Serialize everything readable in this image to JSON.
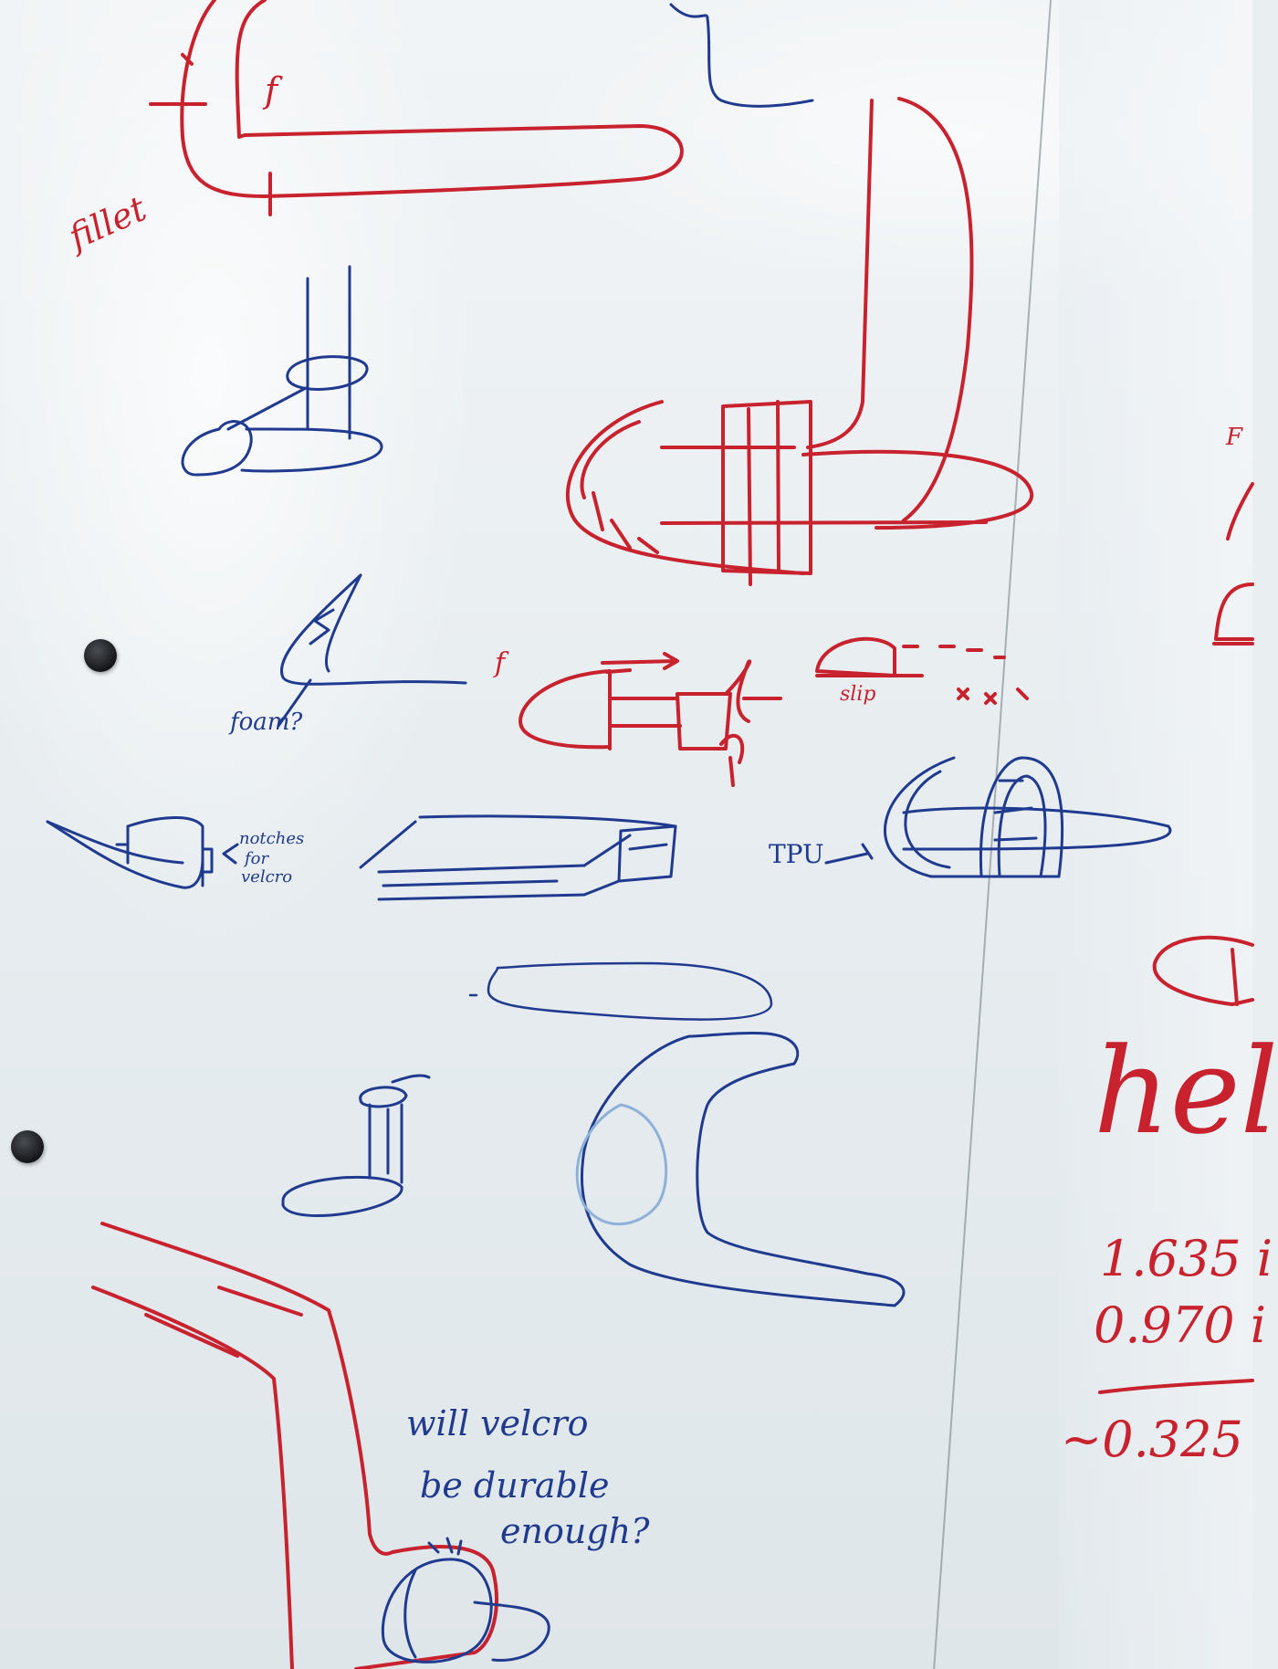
{
  "whiteboard": {
    "description_free": true,
    "colors": {
      "red_marker": "#c8222e",
      "blue_marker": "#1f3a8f"
    },
    "red_notes": {
      "fillet": "fillet",
      "f_top": "f",
      "f_mid": "f",
      "slip": "slip",
      "f_right": "F",
      "hel": "hel",
      "num1": "1.635 i",
      "num2": "0.970 i",
      "result": "~0.325"
    },
    "blue_notes": {
      "foam": "foam?",
      "notches_1": "notches",
      "notches_2": "for",
      "notches_3": "velcro",
      "tpu": "TPU",
      "question_1": "will velcro",
      "question_2": "be durable",
      "question_3": "enough?"
    }
  }
}
